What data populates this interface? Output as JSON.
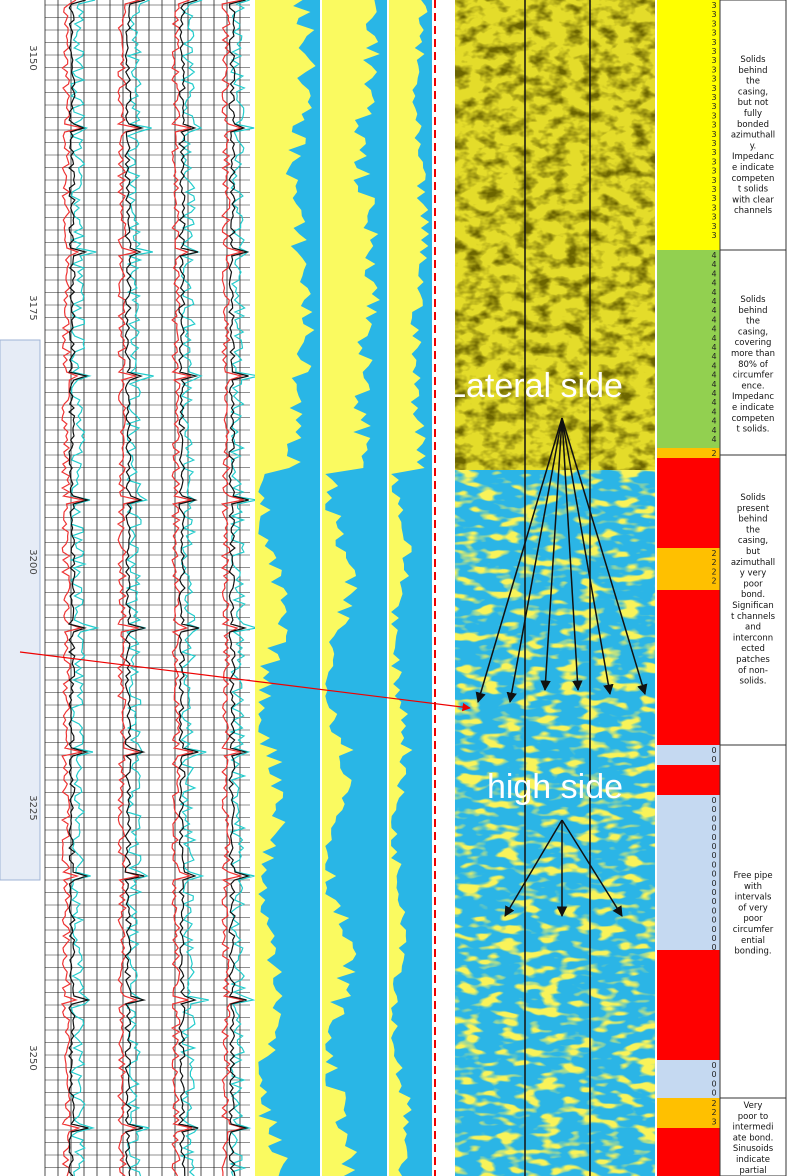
{
  "depth_labels": [
    "3150",
    "3175",
    "3200",
    "3225",
    "3250"
  ],
  "annotations": {
    "lateral": "Lateral side",
    "high": "high side"
  },
  "zones": [
    {
      "color": "#ffff00",
      "codes": [
        "3",
        "3",
        "3",
        "3",
        "3",
        "3",
        "3",
        "3",
        "3",
        "3",
        "3",
        "3",
        "3",
        "3",
        "3",
        "3",
        "3",
        "3",
        "3",
        "3",
        "3",
        "3",
        "3",
        "3",
        "3",
        "3"
      ]
    },
    {
      "color": "#92d050",
      "codes": [
        "4",
        "4",
        "4",
        "4",
        "4",
        "4",
        "4",
        "4",
        "4",
        "4",
        "4",
        "4",
        "4",
        "4",
        "4",
        "4",
        "4",
        "4",
        "4",
        "4",
        "4"
      ]
    },
    {
      "color": "#ffc000",
      "codes": [
        "2"
      ]
    },
    {
      "color": "#ff0000",
      "codes": []
    },
    {
      "color": "#ffc000",
      "codes": [
        "2",
        "2",
        "2",
        "2"
      ]
    },
    {
      "color": "#ff0000",
      "codes": []
    },
    {
      "color": "#c5d9f1",
      "codes": [
        "0",
        "0"
      ]
    },
    {
      "color": "#ff0000",
      "codes": []
    },
    {
      "color": "#c5d9f1",
      "codes": [
        "0",
        "0",
        "0",
        "0",
        "0",
        "0",
        "0",
        "0",
        "0",
        "0",
        "0",
        "0",
        "0",
        "0",
        "0",
        "0",
        "0"
      ]
    },
    {
      "color": "#ff0000",
      "codes": []
    },
    {
      "color": "#c5d9f1",
      "codes": [
        "0",
        "0",
        "0",
        "0"
      ]
    },
    {
      "color": "#ffc000",
      "codes": [
        "2",
        "2",
        "3"
      ]
    },
    {
      "color": "#ff0000",
      "codes": []
    }
  ],
  "interpretations": [
    [
      "Solids",
      "behind",
      "the",
      "casing,",
      "but not",
      "fully",
      "bonded",
      "azimuthall",
      "y.",
      "Impedanc",
      "e indicate",
      "competen",
      "t solids",
      "with clear",
      "channels"
    ],
    [
      "Solids",
      "behind",
      "the",
      "casing,",
      "covering",
      "more than",
      "80% of",
      "circumfer",
      "ence.",
      "Impedanc",
      "e indicate",
      "competen",
      "t solids."
    ],
    [
      "Solids",
      "present",
      "behind",
      "the",
      "casing,",
      "but",
      "azimuthall",
      "y very",
      "poor",
      "bond.",
      "Significan",
      "t channels",
      "and",
      "interconn",
      "ected",
      "patches",
      "of non-",
      "solids."
    ],
    [
      "Free pipe",
      "with",
      "intervals",
      "of very",
      "poor",
      "circumfer",
      "ential",
      "bonding."
    ],
    [
      "Very",
      "poor to",
      "intermedi",
      "ate bond.",
      "Sinusoids",
      "indicate",
      "partial"
    ]
  ]
}
